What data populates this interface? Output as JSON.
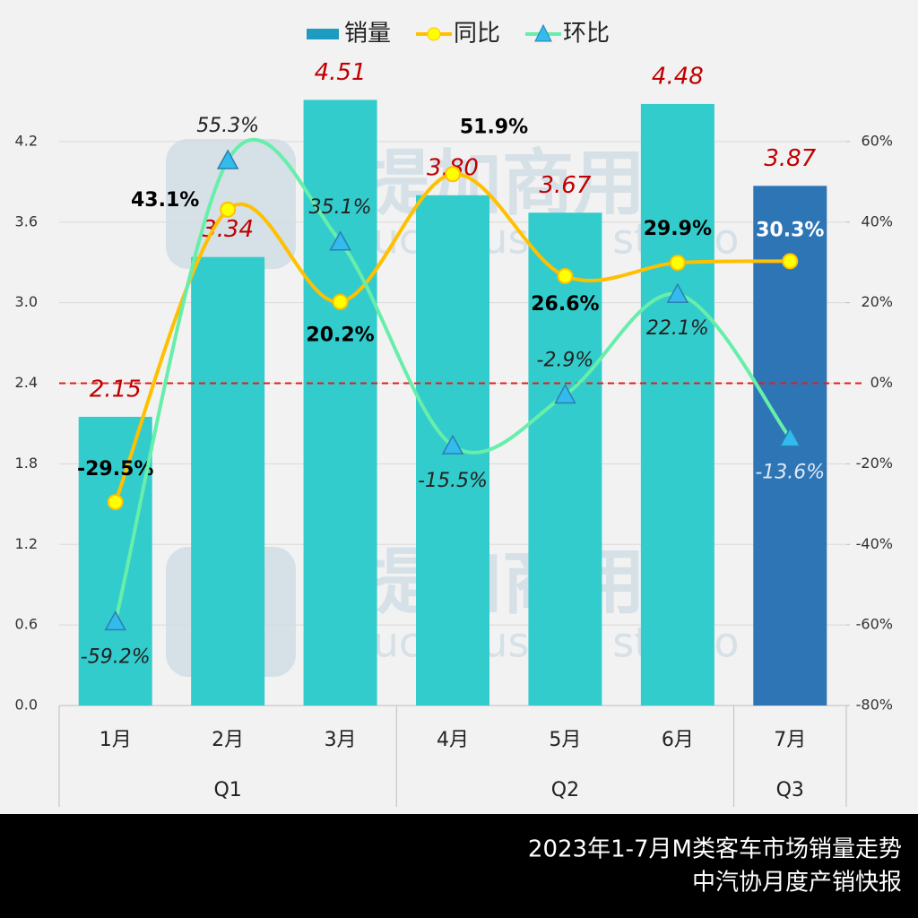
{
  "chart_data": {
    "type": "bar-line",
    "categories": [
      "1月",
      "2月",
      "3月",
      "4月",
      "5月",
      "6月",
      "7月"
    ],
    "groups": [
      {
        "label": "Q1",
        "span": 3
      },
      {
        "label": "Q2",
        "span": 3
      },
      {
        "label": "Q3",
        "span": 1
      }
    ],
    "series": [
      {
        "name": "销量",
        "type": "bar",
        "color": "#1e9cc0",
        "bar_colors": [
          "#33cccc",
          "#33cccc",
          "#33cccc",
          "#33cccc",
          "#33cccc",
          "#33cccc",
          "#2e75b6"
        ],
        "values": [
          2.15,
          3.34,
          4.51,
          3.8,
          3.67,
          4.48,
          3.87
        ],
        "value_labels": [
          "2.15",
          "3.34",
          "4.51",
          "3.80",
          "3.67",
          "4.48",
          "3.87"
        ]
      },
      {
        "name": "同比",
        "type": "line",
        "axis": "y2",
        "color": "#ffc000",
        "marker_color": "#ffff00",
        "values": [
          -29.5,
          43.1,
          20.2,
          51.9,
          26.6,
          29.9,
          30.3
        ],
        "value_labels": [
          "-29.5%",
          "43.1%",
          "20.2%",
          "51.9%",
          "26.6%",
          "29.9%",
          "30.3%"
        ]
      },
      {
        "name": "环比",
        "type": "line",
        "axis": "y2",
        "color": "#66eeaa",
        "marker_color": "#33bbee",
        "values": [
          -59.2,
          55.3,
          35.1,
          -15.5,
          -2.9,
          22.1,
          -13.6
        ],
        "value_labels": [
          "-59.2%",
          "55.3%",
          "35.1%",
          "-15.5%",
          "-2.9%",
          "22.1%",
          "-13.6%"
        ]
      }
    ],
    "ylim": [
      0,
      4.8
    ],
    "yticks": [
      {
        "value": 0,
        "label": "0.0"
      },
      0.6,
      1.2,
      1.8,
      2.4,
      {
        "value": 3,
        "label": "3.0"
      },
      3.6,
      4.2
    ],
    "y2lim": [
      -80,
      80
    ],
    "y2ticks": [
      {
        "value": -80,
        "label": "-80%"
      },
      {
        "value": -60,
        "label": "-60%"
      },
      {
        "value": -40,
        "label": "-40%"
      },
      {
        "value": -20,
        "label": "-20%"
      },
      {
        "value": 0,
        "label": "0%"
      },
      {
        "value": 20,
        "label": "20%"
      },
      {
        "value": 40,
        "label": "40%"
      },
      {
        "value": 60,
        "label": "60%"
      }
    ],
    "reference_line": {
      "axis": "y2",
      "value": 0,
      "color": "#e02020"
    },
    "watermark": {
      "text": "提加商用车",
      "subtext": "TruckPlus CV studio"
    },
    "footer": [
      "2023年1-7月M类客车市场销量走势",
      "中汽协月度产销快报"
    ]
  }
}
